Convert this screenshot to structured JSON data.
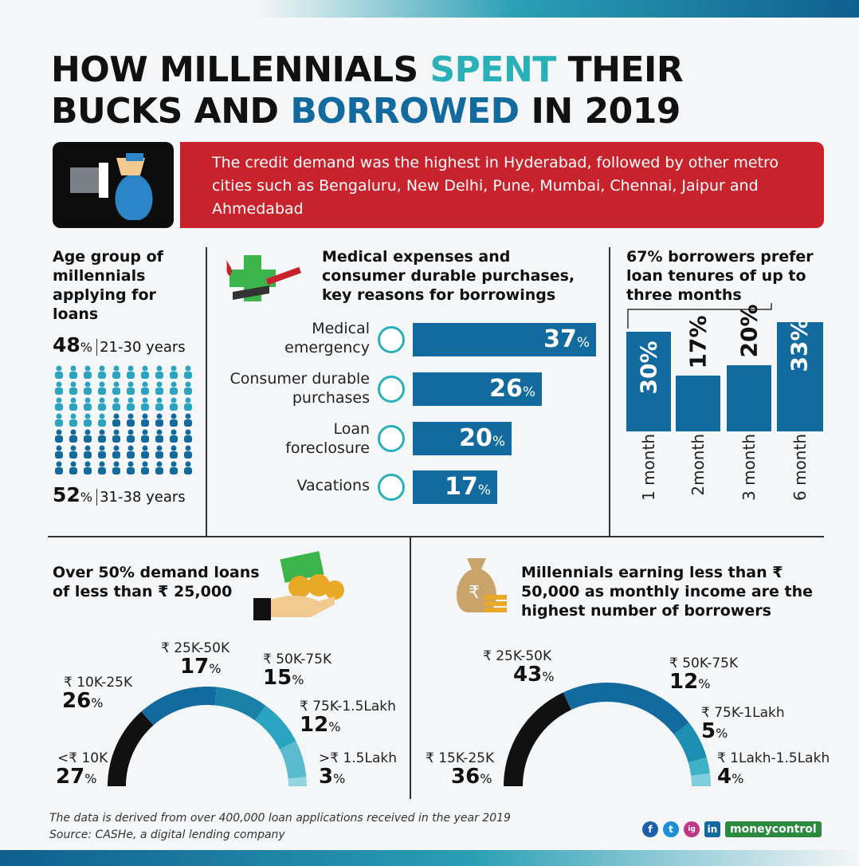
{
  "title": {
    "line1_a": "HOW MILLENNIALS ",
    "line1_b": "SPENT",
    "line1_c": " THEIR",
    "line2_a": "BUCKS AND ",
    "line2_b": "BORROWED",
    "line2_c": " IN 2019"
  },
  "banner": {
    "text": "The credit demand was the highest in Hyderabad, followed by other metro cities such as Bengaluru, New Delhi, Pune, Mumbai, Chennai, Jaipur and Ahmedabad"
  },
  "age": {
    "heading": "Age group of millennials applying for loans",
    "g1_value": "48",
    "g1_label": "21-30 years",
    "g2_value": "52",
    "g2_label": "31-38 years",
    "pct": "%",
    "g1_share": 48,
    "g2_share": 52
  },
  "reasons": {
    "heading": "Medical expenses and consumer durable purchases, key reasons for borrowings",
    "items": [
      {
        "label_l1": "Medical",
        "label_l2": "emergency",
        "value": "37",
        "icon": "medical-kit-icon"
      },
      {
        "label_l1": "Consumer durable",
        "label_l2": "purchases",
        "value": "26",
        "icon": "washing-machine-icon"
      },
      {
        "label_l1": "Loan",
        "label_l2": "foreclosure",
        "value": "20",
        "icon": "hand-coin-icon"
      },
      {
        "label_l1": "",
        "label_l2": "Vacations",
        "value": "17",
        "icon": "globe-camera-icon"
      }
    ],
    "pct": "%"
  },
  "tenure": {
    "heading": "67% borrowers prefer loan tenures of up to three months",
    "items": [
      {
        "label": "1 month",
        "value": "30%"
      },
      {
        "label": "2month",
        "value": "17%"
      },
      {
        "label": "3 month",
        "value": "20%"
      },
      {
        "label": "6 month",
        "value": "33%"
      }
    ]
  },
  "loan_amount": {
    "heading": "Over 50% demand loans of less than ₹ 25,000",
    "segments": [
      {
        "label": "<₹ 10K",
        "value": "27",
        "share": 27,
        "color": "#111111"
      },
      {
        "label": "₹ 10K-25K",
        "value": "26",
        "share": 26,
        "color": "#136a9e"
      },
      {
        "label": "₹ 25K-50K",
        "value": "17",
        "share": 17,
        "color": "#1a80a8"
      },
      {
        "label": "₹ 50K-75K",
        "value": "15",
        "share": 15,
        "color": "#2aa4c0"
      },
      {
        "label": "₹ 75K-1.5Lakh",
        "value": "12",
        "share": 12,
        "color": "#5bbcd0"
      },
      {
        "label": ">₹ 1.5Lakh",
        "value": "3",
        "share": 3,
        "color": "#8fd6e2"
      }
    ]
  },
  "income": {
    "heading": "Millennials earning less than ₹ 50,000 as monthly income are the highest number of borrowers",
    "segments": [
      {
        "label": "₹ 15K-25K",
        "value": "36",
        "share": 36,
        "color": "#111111"
      },
      {
        "label": "₹ 25K-50K",
        "value": "43",
        "share": 43,
        "color": "#136a9e"
      },
      {
        "label": "₹ 50K-75K",
        "value": "12",
        "share": 12,
        "color": "#1d8fb2"
      },
      {
        "label": "₹ 75K-1Lakh",
        "value": "5",
        "share": 5,
        "color": "#3fb2c8"
      },
      {
        "label": "₹ 1Lakh-1.5Lakh",
        "value": "4",
        "share": 4,
        "color": "#7fcfdc"
      }
    ]
  },
  "footer": {
    "line1": "The data is derived from over 400,000 loan applications received in the year 2019",
    "line2": "Source: CASHe, a digital lending company",
    "brand": "moneycontrol",
    "social": [
      "f",
      "t",
      "ig",
      "in"
    ]
  },
  "colors": {
    "teal": "#2ab0b8",
    "blue": "#136a9e",
    "red": "#c8232c"
  }
}
